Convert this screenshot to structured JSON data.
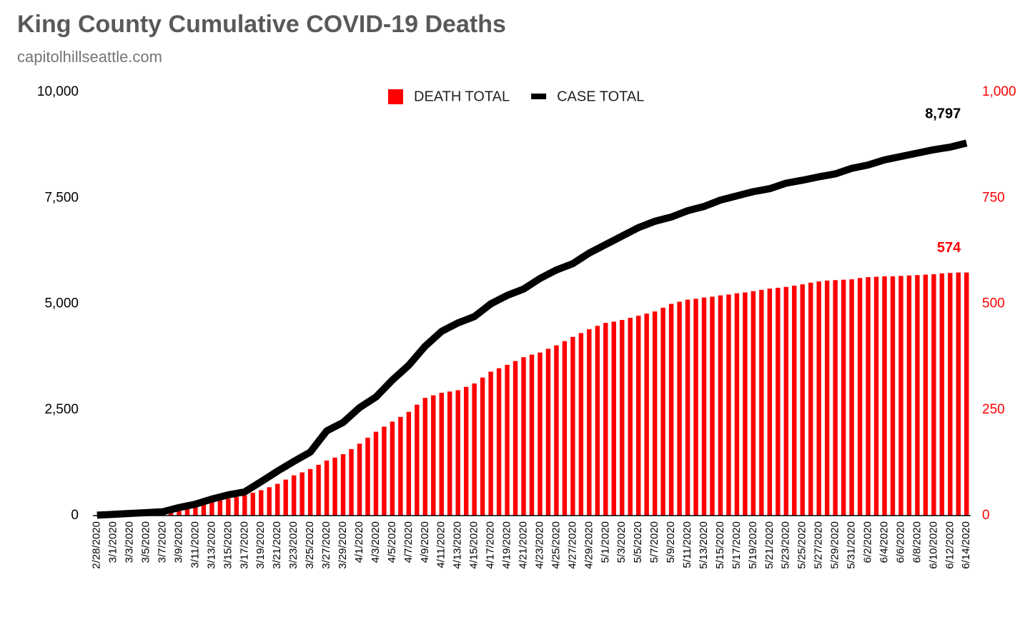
{
  "chart_data": {
    "type": "bar_line",
    "title": "King County Cumulative COVID-19 Deaths",
    "subtitle": "capitolhillseattle.com",
    "categories": [
      "2/28/2020",
      null,
      "3/1/2020",
      null,
      "3/3/2020",
      null,
      "3/5/2020",
      null,
      "3/7/2020",
      null,
      "3/9/2020",
      null,
      "3/11/2020",
      null,
      "3/13/2020",
      null,
      "3/15/2020",
      null,
      "3/17/2020",
      null,
      "3/19/2020",
      null,
      "3/21/2020",
      null,
      "3/23/2020",
      null,
      "3/25/2020",
      null,
      "3/27/2020",
      null,
      "3/29/2020",
      null,
      "4/1/2020",
      null,
      "4/3/2020",
      null,
      "4/5/2020",
      null,
      "4/7/2020",
      null,
      "4/9/2020",
      null,
      "4/11/2020",
      null,
      "4/13/2020",
      null,
      "4/15/2020",
      null,
      "4/17/2020",
      null,
      "4/19/2020",
      null,
      "4/21/2020",
      null,
      "4/23/2020",
      null,
      "4/25/2020",
      null,
      "4/27/2020",
      null,
      "4/29/2020",
      null,
      "5/1/2020",
      null,
      "5/3/2020",
      null,
      "5/5/2020",
      null,
      "5/7/2020",
      null,
      "5/9/2020",
      null,
      "5/11/2020",
      null,
      "5/13/2020",
      null,
      "5/15/2020",
      null,
      "5/17/2020",
      null,
      "5/19/2020",
      null,
      "5/21/2020",
      null,
      "5/23/2020",
      null,
      "5/25/2020",
      null,
      "5/27/2020",
      null,
      "5/29/2020",
      null,
      "5/31/2020",
      null,
      "6/2/2020",
      null,
      "6/4/2020",
      null,
      "6/6/2020",
      null,
      "6/8/2020",
      null,
      "6/10/2020",
      null,
      "6/12/2020",
      null,
      "6/14/2020"
    ],
    "series": [
      {
        "name": "DEATH TOTAL",
        "color": "#ff0000",
        "axis": "y2",
        "kind": "bar",
        "values": [
          1,
          1,
          2,
          4,
          6,
          8,
          10,
          11,
          12,
          15,
          17,
          20,
          24,
          28,
          32,
          36,
          40,
          44,
          48,
          54,
          60,
          67,
          75,
          85,
          95,
          102,
          110,
          120,
          130,
          137,
          145,
          157,
          170,
          184,
          198,
          210,
          222,
          233,
          245,
          262,
          278,
          284,
          290,
          293,
          296,
          304,
          312,
          326,
          340,
          348,
          356,
          365,
          374,
          380,
          385,
          394,
          402,
          412,
          422,
          431,
          440,
          448,
          455,
          458,
          462,
          467,
          472,
          477,
          482,
          491,
          500,
          505,
          510,
          512,
          515,
          517,
          520,
          522,
          525,
          527,
          530,
          533,
          536,
          538,
          540,
          543,
          546,
          550,
          553,
          555,
          556,
          557,
          558,
          561,
          563,
          564,
          565,
          565,
          566,
          567,
          568,
          569,
          570,
          572,
          573,
          574,
          574
        ],
        "value_labels": {
          "106": "574"
        }
      },
      {
        "name": "CASE TOTAL",
        "color": "#000000",
        "axis": "y",
        "kind": "line",
        "values": [
          10,
          20,
          30,
          40,
          50,
          60,
          70,
          80,
          90,
          140,
          190,
          230,
          270,
          330,
          390,
          440,
          490,
          525,
          560,
          680,
          800,
          925,
          1050,
          1165,
          1280,
          1390,
          1500,
          1750,
          2000,
          2100,
          2200,
          2375,
          2550,
          2675,
          2800,
          3000,
          3200,
          3375,
          3550,
          3775,
          4000,
          4175,
          4350,
          4450,
          4550,
          4625,
          4700,
          4850,
          5000,
          5100,
          5200,
          5275,
          5350,
          5475,
          5600,
          5700,
          5800,
          5875,
          5950,
          6075,
          6200,
          6300,
          6400,
          6500,
          6600,
          6700,
          6800,
          6875,
          6950,
          7000,
          7050,
          7125,
          7200,
          7250,
          7300,
          7375,
          7450,
          7500,
          7550,
          7600,
          7650,
          7685,
          7720,
          7785,
          7850,
          7885,
          7920,
          7960,
          8000,
          8035,
          8070,
          8135,
          8200,
          8240,
          8280,
          8340,
          8400,
          8440,
          8480,
          8520,
          8560,
          8600,
          8640,
          8670,
          8700,
          8750,
          8797
        ],
        "value_labels": {
          "106": "8,797"
        }
      }
    ],
    "ylim": [
      0,
      10000
    ],
    "yticks": [
      0,
      {
        "value": 2500,
        "label": "2,500"
      },
      {
        "value": 5000,
        "label": "5,000"
      },
      {
        "value": 7500,
        "label": "7,500"
      },
      {
        "value": 10000,
        "label": "10,000"
      }
    ],
    "y2lim": [
      0,
      1000
    ],
    "y2ticks": [
      0,
      250,
      500,
      750,
      {
        "value": 1000,
        "label": "1,000"
      }
    ],
    "y2color": "#ff0000",
    "legend": "top",
    "grid": false
  }
}
